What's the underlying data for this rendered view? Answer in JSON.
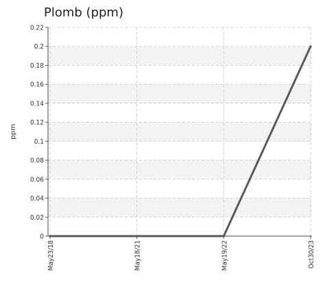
{
  "chart_data": {
    "type": "line",
    "title": "Plomb (ppm)",
    "ylabel": "ppm",
    "xlabel": "",
    "ylim": [
      0,
      0.22
    ],
    "yticks": [
      "0",
      "0.02",
      "0.04",
      "0.06",
      "0.08",
      "0.1",
      "0.12",
      "0.14",
      "0.16",
      "0.18",
      "0.2",
      "0.22"
    ],
    "categories": [
      "May23/18",
      "May18/21",
      "May19/22",
      "Oct30/23"
    ],
    "series": [
      {
        "values": [
          0,
          0,
          0,
          0.2
        ]
      }
    ],
    "grid": true,
    "band_color": "#f3f3f3",
    "grid_color": "#d0d0d0",
    "line_color": "#5a5a5a"
  }
}
